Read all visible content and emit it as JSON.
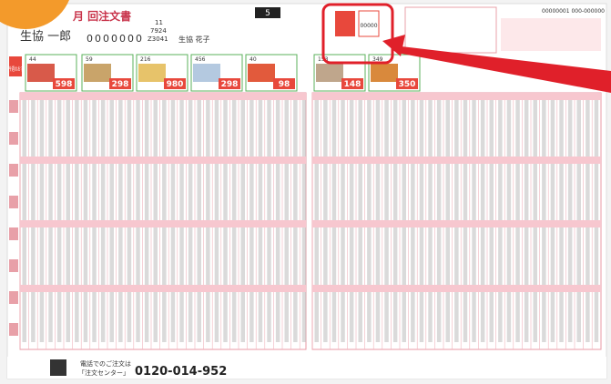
{
  "header": {
    "title": "月 回注文書",
    "name": "生協 一郎",
    "member_code": "0000000",
    "code": "Z3041",
    "number": "7924",
    "week": "11",
    "page_number": "5",
    "spouse": "生協 花子",
    "id": "00000001 000-000000",
    "point_code": "00000"
  },
  "featured": {
    "label": "今週のおすすめ",
    "items": [
      {
        "no": "44",
        "price": "598"
      },
      {
        "no": "59",
        "price": "298"
      },
      {
        "no": "216",
        "price": "980"
      },
      {
        "no": "456",
        "price": "298"
      },
      {
        "no": "40",
        "price": "98"
      },
      {
        "no": "153",
        "price": "148"
      },
      {
        "no": "349",
        "price": "350"
      }
    ]
  },
  "footer": {
    "phone_prompt": "電話でのご注文は",
    "center": "「注文センター」",
    "phone": "0120-014-952"
  }
}
